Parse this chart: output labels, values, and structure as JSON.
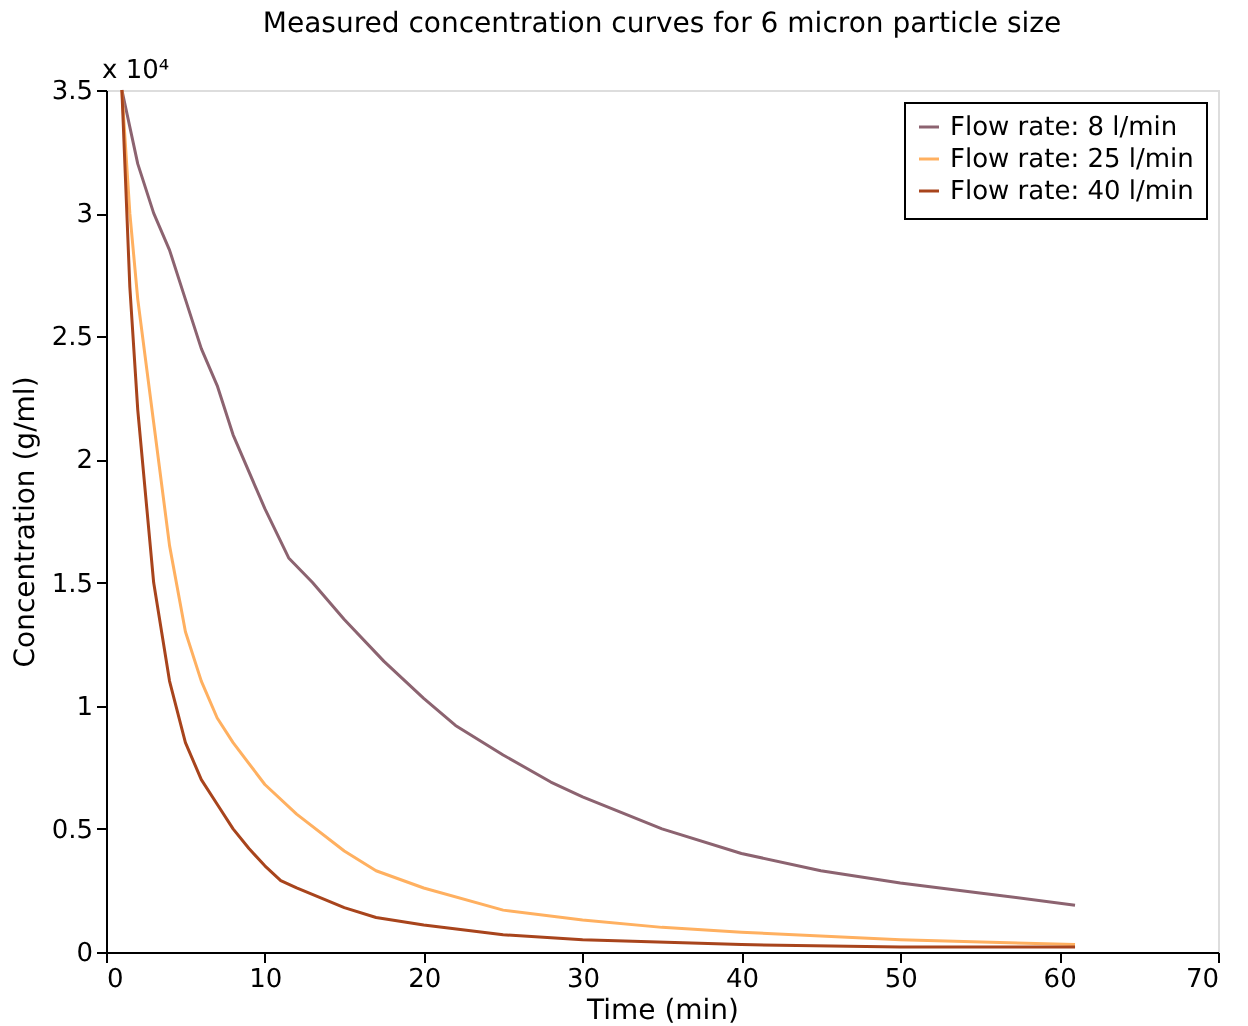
{
  "chart_data": {
    "type": "line",
    "title": "Measured concentration curves for 6 micron particle size",
    "xlabel": "Time (min)",
    "ylabel": "Concentration (g/ml)",
    "annotations": [
      "x 10⁴"
    ],
    "xlim": [
      0,
      70
    ],
    "xticks": [
      0,
      10,
      20,
      30,
      40,
      50,
      60,
      70
    ],
    "ylim": [
      0,
      3.5
    ],
    "yticks": [
      0,
      0.5,
      1,
      1.5,
      2,
      2.5,
      3,
      3.5
    ],
    "grid": false,
    "legend": "top right",
    "marker": "none",
    "line_style": "solid",
    "series": [
      {
        "name": "Flow rate: 8 l/min",
        "color": "#8c6370",
        "x": [
          1,
          2,
          3,
          4,
          5,
          6,
          7,
          8,
          10,
          11.5,
          13,
          15,
          17.5,
          20,
          22,
          25,
          28,
          30,
          35,
          40,
          45,
          50,
          55,
          61
        ],
        "values": [
          3.5,
          3.2,
          3.0,
          2.85,
          2.65,
          2.45,
          2.3,
          2.1,
          1.8,
          1.6,
          1.5,
          1.35,
          1.18,
          1.03,
          0.92,
          0.8,
          0.69,
          0.63,
          0.5,
          0.4,
          0.33,
          0.28,
          0.24,
          0.19
        ]
      },
      {
        "name": "Flow rate: 25 l/min",
        "color": "#ffb060",
        "x": [
          1,
          1.5,
          2,
          3,
          4,
          5,
          6,
          7,
          8,
          10,
          12,
          15,
          17,
          20,
          25,
          30,
          35,
          40,
          50,
          61
        ],
        "values": [
          3.5,
          3.0,
          2.65,
          2.15,
          1.65,
          1.3,
          1.1,
          0.95,
          0.85,
          0.68,
          0.56,
          0.41,
          0.33,
          0.26,
          0.17,
          0.13,
          0.1,
          0.08,
          0.05,
          0.03
        ]
      },
      {
        "name": "Flow rate: 40 l/min",
        "color": "#a8441c",
        "x": [
          1,
          1.5,
          2,
          3,
          4,
          5,
          6,
          7,
          8,
          9,
          10,
          11,
          12,
          15,
          17,
          20,
          25,
          30,
          40,
          50,
          61
        ],
        "values": [
          3.5,
          2.7,
          2.2,
          1.5,
          1.1,
          0.85,
          0.7,
          0.6,
          0.5,
          0.42,
          0.35,
          0.29,
          0.26,
          0.18,
          0.14,
          0.11,
          0.07,
          0.05,
          0.03,
          0.02,
          0.02
        ]
      }
    ]
  }
}
